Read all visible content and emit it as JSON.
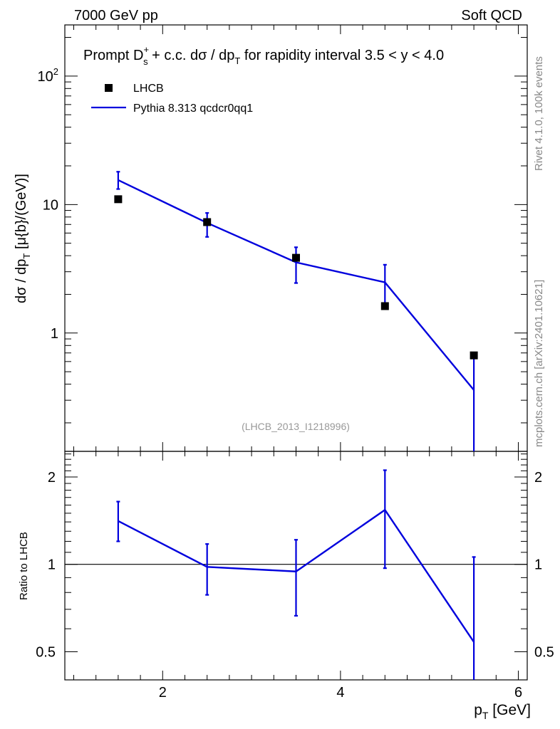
{
  "header": {
    "energy": "7000 GeV pp",
    "process": "Soft QCD"
  },
  "side_text": {
    "rivet": "Rivet 4.1.0,  100k events",
    "source": "mcplots.cern.ch [arXiv:2401.10621]"
  },
  "chart_data": [
    {
      "type": "scatter",
      "title": "Prompt D_s^+ + c.c.  dσ / dp_T for rapidity interval 3.5 < y < 4.0",
      "title_parts": {
        "prefix": "Prompt D",
        "sup": "+",
        "sub": "s",
        "suffix": " + c.c.  dσ / dp",
        "sub2": "T",
        "tail": " for rapidity interval 3.5 < y < 4.0"
      },
      "ylabel": "dσ / dp_T [μ{b}/(GeV)]",
      "yscale": "log",
      "ylim": [
        0.12,
        250
      ],
      "xlim": [
        0.9,
        6.1
      ],
      "analysis": "(LHCB_2013_I1218996)",
      "y_tick_labels": [
        "1",
        "10",
        "10^2"
      ],
      "legend": [
        {
          "name": "LHCB",
          "marker": "square",
          "color": "#000000"
        },
        {
          "name": "Pythia 8.313 qcdcr0qq1",
          "marker": "line",
          "color": "#0000dd"
        }
      ],
      "series": [
        {
          "name": "LHCB",
          "x": [
            1.5,
            2.5,
            3.5,
            4.5,
            5.5
          ],
          "y": [
            11.0,
            7.3,
            3.85,
            1.62,
            0.67
          ]
        },
        {
          "name": "Pythia 8.313 qcdcr0qq1",
          "x": [
            1.5,
            2.5,
            3.5,
            4.5,
            5.5
          ],
          "y": [
            15.5,
            7.2,
            3.55,
            2.48,
            0.36
          ],
          "err_lo": [
            13.2,
            5.6,
            2.45,
            1.6,
            0.0
          ],
          "err_hi": [
            18.0,
            8.6,
            4.65,
            3.4,
            0.7
          ]
        }
      ]
    },
    {
      "type": "line",
      "ylabel": "Ratio to LHCB",
      "xlabel": "p_T [GeV]",
      "yscale": "log",
      "ylim": [
        0.4,
        2.45
      ],
      "xlim": [
        0.9,
        6.1
      ],
      "x_tick_labels": [
        "2",
        "4",
        "6"
      ],
      "y_tick_labels": [
        "0.5",
        "1",
        "2"
      ],
      "reference_line": 1,
      "series": [
        {
          "name": "Pythia 8.313 qcdcr0qq1 / LHCB",
          "x": [
            1.5,
            2.5,
            3.5,
            4.5,
            5.5
          ],
          "y": [
            1.41,
            0.98,
            0.945,
            1.54,
            0.54
          ],
          "err_lo": [
            1.2,
            0.785,
            0.665,
            0.97,
            0.0
          ],
          "err_hi": [
            1.645,
            1.175,
            1.215,
            2.11,
            1.06
          ]
        }
      ]
    }
  ],
  "colors": {
    "mc": "#0000dd",
    "data": "#000000",
    "side": "#888888"
  }
}
